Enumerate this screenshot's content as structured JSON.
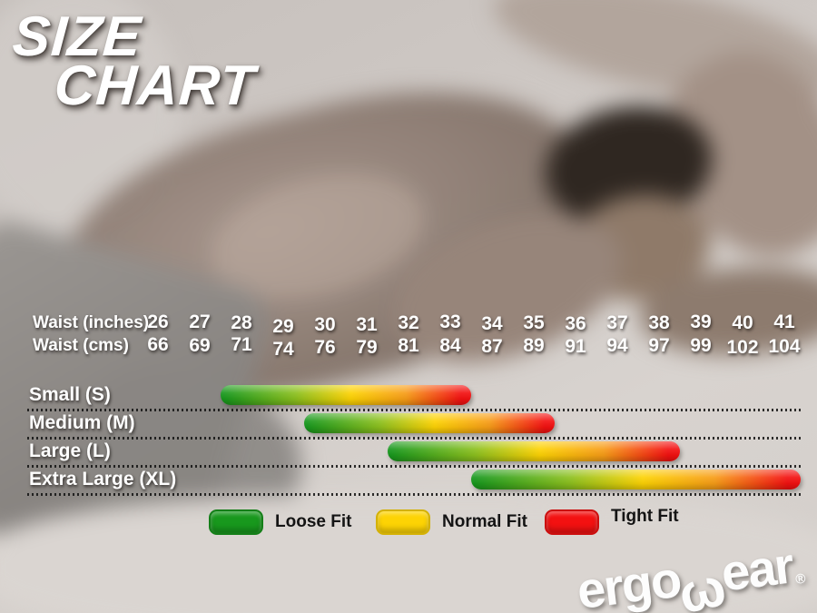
{
  "title": {
    "line1": "SIZE",
    "line2": "CHART"
  },
  "waist_header": {
    "inches_label": "Waist (inches)",
    "cms_label": "Waist (cms)"
  },
  "chart_data": {
    "type": "bar",
    "orientation": "horizontal-range",
    "title": "SIZE CHART",
    "x_axis": {
      "inches_label": "Waist (inches)",
      "inches_ticks": [
        26,
        27,
        28,
        29,
        30,
        31,
        32,
        33,
        34,
        35,
        36,
        37,
        38,
        39,
        40,
        41
      ],
      "cms_label": "Waist (cms)",
      "cms_ticks": [
        66,
        69,
        71,
        74,
        76,
        79,
        81,
        84,
        87,
        89,
        91,
        94,
        97,
        99,
        102,
        104
      ],
      "range_inches": [
        26,
        41
      ],
      "grid": false
    },
    "series": [
      {
        "name": "Small (S)",
        "waist_inches_range": [
          27.5,
          33.5
        ]
      },
      {
        "name": "Medium (M)",
        "waist_inches_range": [
          29.5,
          35.5
        ]
      },
      {
        "name": "Large (L)",
        "waist_inches_range": [
          31.5,
          38.5
        ]
      },
      {
        "name": "Extra Large (XL)",
        "waist_inches_range": [
          33.5,
          41.5
        ]
      }
    ],
    "bar_gradient_meaning": "left green = Loose Fit, middle yellow = Normal Fit, right red = Tight Fit",
    "legend": [
      {
        "label": "Loose Fit",
        "color": "#18981d"
      },
      {
        "label": "Normal Fit",
        "color": "#fdd304"
      },
      {
        "label": "Tight Fit",
        "color": "#f31111"
      }
    ],
    "legend_position": "bottom"
  },
  "brand": {
    "part1": "ergo",
    "omega": "ω",
    "part2": "ear",
    "registered": "®"
  }
}
